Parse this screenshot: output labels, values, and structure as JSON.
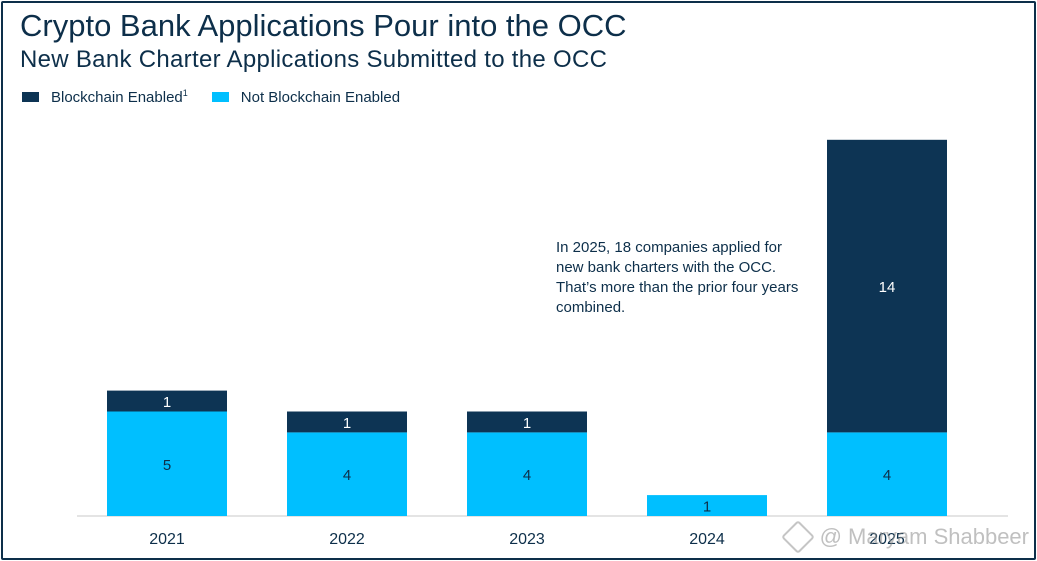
{
  "title": "Crypto Bank Applications Pour into the OCC",
  "subtitle": "New Bank Charter Applications Submitted to the OCC",
  "annotation": "In 2025, 18 companies applied for new bank charters with the OCC. That’s more than the prior four years combined.",
  "watermark": "@ Maryam Shabbeer",
  "colors": {
    "blockchain": "#0d3454",
    "not_blockchain": "#00bfff",
    "frame": "#0d2f4a",
    "text": "#0d2f4a"
  },
  "chart_data": {
    "type": "bar",
    "stacked": true,
    "categories": [
      "2021",
      "2022",
      "2023",
      "2024",
      "2025"
    ],
    "series": [
      {
        "name": "Not Blockchain Enabled",
        "values": [
          5,
          4,
          4,
          1,
          4
        ],
        "color": "#00bfff"
      },
      {
        "name": "Blockchain Enabled",
        "superscript": "1",
        "values": [
          1,
          1,
          1,
          0,
          14
        ],
        "color": "#0d3454"
      }
    ],
    "ylim": [
      0,
      18
    ],
    "legend_position": "top-left",
    "grid": false
  }
}
